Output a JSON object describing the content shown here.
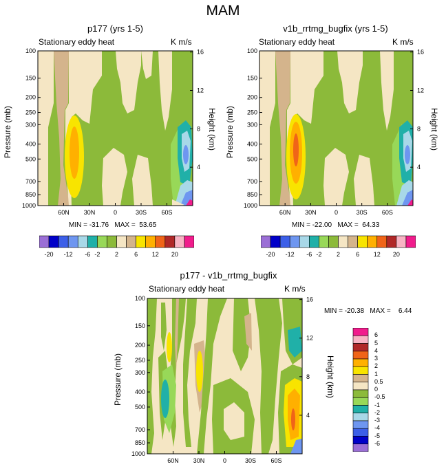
{
  "main_title": "MAM",
  "colors": {
    "c_m20": "#9b6fd6",
    "c_m16": "#0000c8",
    "c_m12": "#3c5fe8",
    "c_m8": "#6e96f0",
    "c_m6": "#a8d8e8",
    "c_m4": "#20b0a8",
    "c_m2": "#98d858",
    "c_0": "#8cba3a",
    "c_2": "#f5e6c4",
    "c_4": "#d4b48c",
    "c_6": "#f8e400",
    "c_8": "#ffb000",
    "c_12": "#f06418",
    "c_16": "#b02828",
    "c_20": "#f8b4c4",
    "c_max": "#f01c8c"
  },
  "chart_data": [
    {
      "type": "heatmap",
      "name": "panel-p177",
      "title": "p177 (yrs 1-5)",
      "subtitle_left": "Stationary eddy heat",
      "subtitle_right": "K m/s",
      "ylabel": "Pressure (mb)",
      "ylabel_right": "Height (km)",
      "x_ticks": [
        "60N",
        "30N",
        "0",
        "30S",
        "60S"
      ],
      "y_ticks": [
        "100",
        "150",
        "200",
        "250",
        "300",
        "400",
        "500",
        "700",
        "850",
        "1000"
      ],
      "y_right_ticks": [
        "16",
        "12",
        "8",
        "4"
      ],
      "min_max_text": "MIN = -31.76   MAX =  53.65",
      "colorbar_labels": [
        "-20",
        "-12",
        "-6",
        "-2",
        "2",
        "6",
        "12",
        "20"
      ],
      "colorbar_levels": [
        -20,
        -16,
        -12,
        -8,
        -6,
        -4,
        -2,
        0,
        2,
        4,
        6,
        8,
        12,
        16,
        20
      ]
    },
    {
      "type": "heatmap",
      "name": "panel-v1b",
      "title": "v1b_rrtmg_bugfix (yrs 1-5)",
      "subtitle_left": "Stationary eddy heat",
      "subtitle_right": "K m/s",
      "ylabel": "Pressure (mb)",
      "ylabel_right": "Height (km)",
      "x_ticks": [
        "60N",
        "30N",
        "0",
        "30S",
        "60S"
      ],
      "y_ticks": [
        "100",
        "150",
        "200",
        "250",
        "300",
        "400",
        "500",
        "700",
        "850",
        "1000"
      ],
      "y_right_ticks": [
        "16",
        "12",
        "8",
        "4"
      ],
      "min_max_text": "MIN = -22.00   MAX =  64.33",
      "colorbar_labels": [
        "-20",
        "-12",
        "-6",
        "-2",
        "2",
        "6",
        "12",
        "20"
      ],
      "colorbar_levels": [
        -20,
        -16,
        -12,
        -8,
        -6,
        -4,
        -2,
        0,
        2,
        4,
        6,
        8,
        12,
        16,
        20
      ]
    },
    {
      "type": "heatmap",
      "name": "panel-diff",
      "title": "p177 - v1b_rrtmg_bugfix",
      "subtitle_left": "Stationary eddy heat",
      "subtitle_right": "K m/s",
      "ylabel": "Pressure (mb)",
      "ylabel_right": "Height (km)",
      "x_ticks": [
        "60N",
        "30N",
        "0",
        "30S",
        "60S"
      ],
      "y_ticks": [
        "100",
        "150",
        "200",
        "250",
        "300",
        "400",
        "500",
        "700",
        "850",
        "1000"
      ],
      "y_right_ticks": [
        "16",
        "12",
        "8",
        "4"
      ],
      "min_max_text": "MIN = -20.38   MAX =    6.44",
      "colorbar_labels": [
        "6",
        "5",
        "4",
        "3",
        "2",
        "1",
        "0.5",
        "0",
        "-0.5",
        "-1",
        "-2",
        "-3",
        "-4",
        "-5",
        "-6"
      ],
      "colorbar_levels": [
        -6,
        -5,
        -4,
        -3,
        -2,
        -1,
        -0.5,
        0,
        0.5,
        1,
        2,
        3,
        4,
        5,
        6
      ]
    }
  ]
}
